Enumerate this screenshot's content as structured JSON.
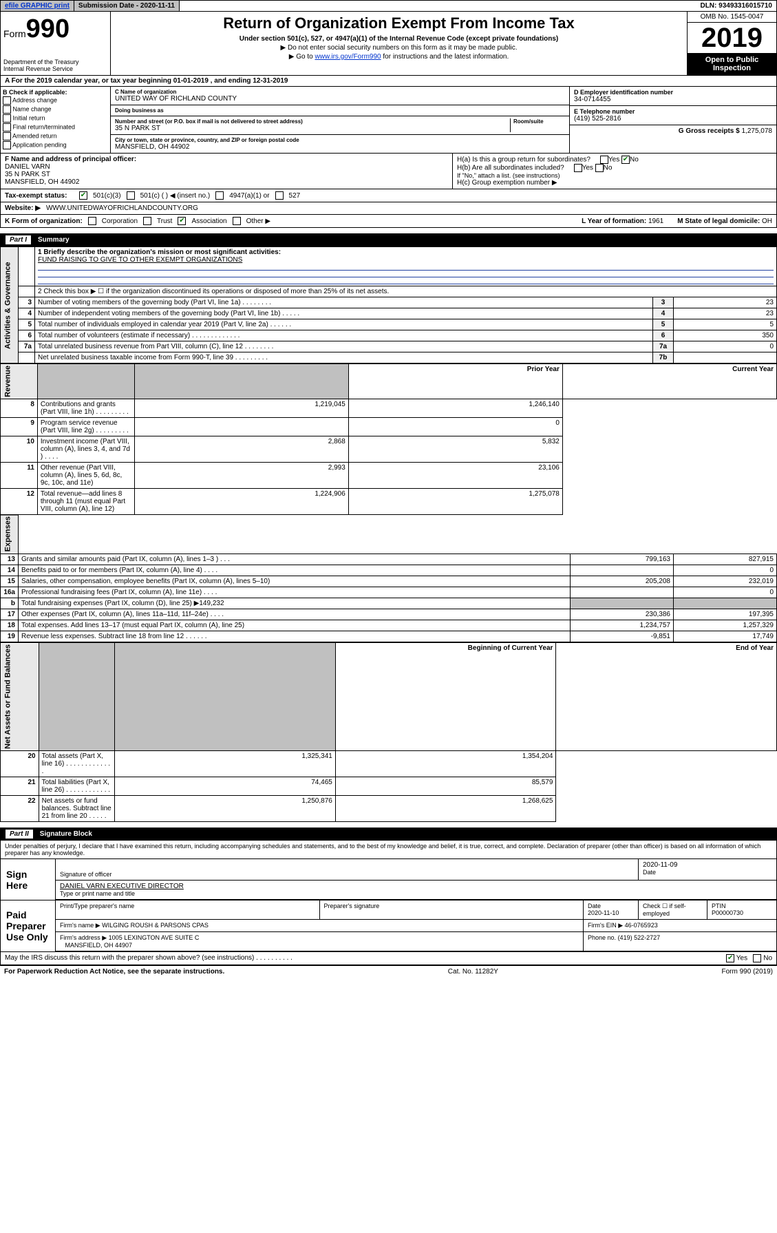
{
  "topbar": {
    "efile": "efile GRAPHIC print",
    "submission": "Submission Date - 2020-11-11",
    "dln": "DLN: 93493316015710"
  },
  "header": {
    "form_prefix": "Form",
    "form_num": "990",
    "dept": "Department of the Treasury\nInternal Revenue Service",
    "title": "Return of Organization Exempt From Income Tax",
    "subtitle": "Under section 501(c), 527, or 4947(a)(1) of the Internal Revenue Code (except private foundations)",
    "note1": "▶ Do not enter social security numbers on this form as it may be made public.",
    "note2_pre": "▶ Go to ",
    "note2_link": "www.irs.gov/Form990",
    "note2_post": " for instructions and the latest information.",
    "omb": "OMB No. 1545-0047",
    "year": "2019",
    "open": "Open to Public Inspection"
  },
  "period": "A For the 2019 calendar year, or tax year beginning 01-01-2019    , and ending 12-31-2019",
  "checkboxes_b": {
    "title": "B Check if applicable:",
    "items": [
      "Address change",
      "Name change",
      "Initial return",
      "Final return/terminated",
      "Amended return",
      "Application pending"
    ]
  },
  "org": {
    "c_label": "C Name of organization",
    "name": "UNITED WAY OF RICHLAND COUNTY",
    "dba_label": "Doing business as",
    "dba": "",
    "addr_label": "Number and street (or P.O. box if mail is not delivered to street address)",
    "room_label": "Room/suite",
    "street": "35 N PARK ST",
    "city_label": "City or town, state or province, country, and ZIP or foreign postal code",
    "city": "MANSFIELD, OH  44902"
  },
  "right": {
    "d_label": "D Employer identification number",
    "ein": "34-0714455",
    "e_label": "E Telephone number",
    "phone": "(419) 525-2816",
    "g_label": "G Gross receipts $",
    "gross": "1,275,078"
  },
  "officer": {
    "f_label": "F Name and address of principal officer:",
    "name": "DANIEL VARN",
    "street": "35 N PARK ST",
    "city": "MANSFIELD, OH  44902"
  },
  "h": {
    "ha_label": "H(a)  Is this a group return for subordinates?",
    "hb_label": "H(b)  Are all subordinates included?",
    "hb_note": "If \"No,\" attach a list. (see instructions)",
    "hc_label": "H(c)  Group exemption number ▶"
  },
  "tax_status": {
    "label": "Tax-exempt status:",
    "opts": [
      "501(c)(3)",
      "501(c) (   ) ◀ (insert no.)",
      "4947(a)(1) or",
      "527"
    ]
  },
  "website": {
    "label": "Website: ▶",
    "value": "WWW.UNITEDWAYOFRICHLANDCOUNTY.ORG"
  },
  "k": {
    "label": "K Form of organization:",
    "opts": [
      "Corporation",
      "Trust",
      "Association",
      "Other ▶"
    ],
    "l_label": "L Year of formation:",
    "l_val": "1961",
    "m_label": "M State of legal domicile:",
    "m_val": "OH"
  },
  "part1": {
    "num": "Part I",
    "title": "Summary"
  },
  "mission": {
    "label": "1   Briefly describe the organization's mission or most significant activities:",
    "text": "FUND RAISING TO GIVE TO OTHER EXEMPT ORGANIZATIONS"
  },
  "line2": "2   Check this box ▶ ☐  if the organization discontinued its operations or disposed of more than 25% of its net assets.",
  "governance": [
    {
      "n": "3",
      "d": "Number of voting members of the governing body (Part VI, line 1a)  .   .   .   .   .   .   .   .",
      "b": "3",
      "v": "23"
    },
    {
      "n": "4",
      "d": "Number of independent voting members of the governing body (Part VI, line 1b)  .   .   .   .   .",
      "b": "4",
      "v": "23"
    },
    {
      "n": "5",
      "d": "Total number of individuals employed in calendar year 2019 (Part V, line 2a)  .   .   .   .   .   .",
      "b": "5",
      "v": "5"
    },
    {
      "n": "6",
      "d": "Total number of volunteers (estimate if necessary)  .   .   .   .   .   .   .   .   .   .   .   .   .",
      "b": "6",
      "v": "350"
    },
    {
      "n": "7a",
      "d": "Total unrelated business revenue from Part VIII, column (C), line 12  .   .   .   .   .   .   .   .",
      "b": "7a",
      "v": "0"
    },
    {
      "n": "",
      "d": "Net unrelated business taxable income from Form 990-T, line 39  .   .   .   .   .   .   .   .   .",
      "b": "7b",
      "v": ""
    }
  ],
  "col_hdr": {
    "prior": "Prior Year",
    "current": "Current Year"
  },
  "revenue": [
    {
      "n": "8",
      "d": "Contributions and grants (Part VIII, line 1h)  .   .   .   .   .   .   .   .   .",
      "p": "1,219,045",
      "c": "1,246,140"
    },
    {
      "n": "9",
      "d": "Program service revenue (Part VIII, line 2g)  .   .   .   .   .   .   .   .   .",
      "p": "",
      "c": "0"
    },
    {
      "n": "10",
      "d": "Investment income (Part VIII, column (A), lines 3, 4, and 7d )  .   .   .   .",
      "p": "2,868",
      "c": "5,832"
    },
    {
      "n": "11",
      "d": "Other revenue (Part VIII, column (A), lines 5, 6d, 8c, 9c, 10c, and 11e)",
      "p": "2,993",
      "c": "23,106"
    },
    {
      "n": "12",
      "d": "Total revenue—add lines 8 through 11 (must equal Part VIII, column (A), line 12)",
      "p": "1,224,906",
      "c": "1,275,078"
    }
  ],
  "expenses": [
    {
      "n": "13",
      "d": "Grants and similar amounts paid (Part IX, column (A), lines 1–3 )  .   .   .",
      "p": "799,163",
      "c": "827,915"
    },
    {
      "n": "14",
      "d": "Benefits paid to or for members (Part IX, column (A), line 4)  .   .   .   .",
      "p": "",
      "c": "0"
    },
    {
      "n": "15",
      "d": "Salaries, other compensation, employee benefits (Part IX, column (A), lines 5–10)",
      "p": "205,208",
      "c": "232,019"
    },
    {
      "n": "16a",
      "d": "Professional fundraising fees (Part IX, column (A), line 11e)   .   .   .   .",
      "p": "",
      "c": "0"
    },
    {
      "n": "b",
      "d": "Total fundraising expenses (Part IX, column (D), line 25) ▶149,232",
      "p": "shade",
      "c": "shade"
    },
    {
      "n": "17",
      "d": "Other expenses (Part IX, column (A), lines 11a–11d, 11f–24e)  .   .   .   .",
      "p": "230,386",
      "c": "197,395"
    },
    {
      "n": "18",
      "d": "Total expenses. Add lines 13–17 (must equal Part IX, column (A), line 25)",
      "p": "1,234,757",
      "c": "1,257,329"
    },
    {
      "n": "19",
      "d": "Revenue less expenses. Subtract line 18 from line 12   .   .   .   .   .   .",
      "p": "-9,851",
      "c": "17,749"
    }
  ],
  "col_hdr2": {
    "beg": "Beginning of Current Year",
    "end": "End of Year"
  },
  "netassets": [
    {
      "n": "20",
      "d": "Total assets (Part X, line 16)  .   .   .   .   .   .   .   .   .   .   .   .   .",
      "p": "1,325,341",
      "c": "1,354,204"
    },
    {
      "n": "21",
      "d": "Total liabilities (Part X, line 26)  .   .   .   .   .   .   .   .   .   .   .   .",
      "p": "74,465",
      "c": "85,579"
    },
    {
      "n": "22",
      "d": "Net assets or fund balances. Subtract line 21 from line 20  .   .   .   .   .",
      "p": "1,250,876",
      "c": "1,268,625"
    }
  ],
  "vtabs": {
    "gov": "Activities & Governance",
    "rev": "Revenue",
    "exp": "Expenses",
    "net": "Net Assets or Fund Balances"
  },
  "part2": {
    "num": "Part II",
    "title": "Signature Block"
  },
  "perjury": "Under penalties of perjury, I declare that I have examined this return, including accompanying schedules and statements, and to the best of my knowledge and belief, it is true, correct, and complete. Declaration of preparer (other than officer) is based on all information of which preparer has any knowledge.",
  "sign": {
    "here": "Sign Here",
    "sig_officer": "Signature of officer",
    "date": "2020-11-09",
    "date_lbl": "Date",
    "name": "DANIEL VARN  EXECUTIVE DIRECTOR",
    "name_lbl": "Type or print name and title"
  },
  "paid": {
    "label": "Paid Preparer Use Only",
    "hdr": [
      "Print/Type preparer's name",
      "Preparer's signature",
      "Date",
      "",
      "PTIN"
    ],
    "row": [
      "",
      "",
      "2020-11-10",
      "Check ☐ if self-employed",
      "P00000730"
    ],
    "firm_name_lbl": "Firm's name    ▶",
    "firm_name": "WILGING ROUSH & PARSONS CPAS",
    "firm_ein_lbl": "Firm's EIN ▶",
    "firm_ein": "46-0765923",
    "firm_addr_lbl": "Firm's address ▶",
    "firm_addr": "1005 LEXINGTON AVE SUITE C",
    "firm_city": "MANSFIELD, OH  44907",
    "phone_lbl": "Phone no.",
    "phone": "(419) 522-2727"
  },
  "discuss": "May the IRS discuss this return with the preparer shown above? (see instructions)   .   .   .   .   .   .   .   .   .   .",
  "footer": {
    "left": "For Paperwork Reduction Act Notice, see the separate instructions.",
    "mid": "Cat. No. 11282Y",
    "right": "Form 990 (2019)"
  }
}
